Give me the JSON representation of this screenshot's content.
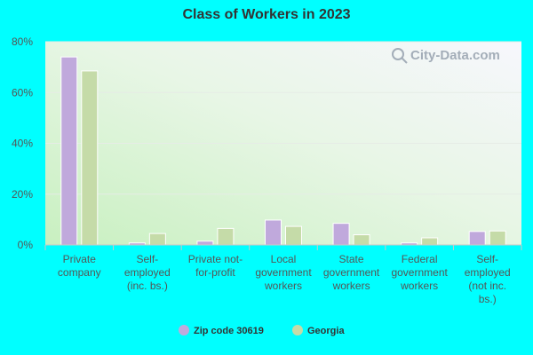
{
  "chart_data": {
    "type": "bar",
    "title": "Class of Workers in 2023",
    "categories": [
      [
        "Private",
        "company"
      ],
      [
        "Self-",
        "employed",
        "(inc. bs.)"
      ],
      [
        "Private not-",
        "for-profit"
      ],
      [
        "Local",
        "government",
        "workers"
      ],
      [
        "State",
        "government",
        "workers"
      ],
      [
        "Federal",
        "government",
        "workers"
      ],
      [
        "Self-",
        "employed",
        "(not inc.",
        "bs.)"
      ]
    ],
    "series": [
      {
        "name": "Zip code 30619",
        "color": "#c0a9dc",
        "values": [
          74.0,
          0.8,
          1.5,
          9.8,
          8.5,
          0.8,
          5.3
        ]
      },
      {
        "name": "Georgia",
        "color": "#c5dba8",
        "values": [
          68.5,
          4.5,
          6.5,
          7.3,
          4.0,
          2.8,
          5.5
        ]
      }
    ],
    "y_ticks": [
      "0%",
      "20%",
      "40%",
      "60%",
      "80%"
    ],
    "y_tick_values": [
      0,
      20,
      40,
      60,
      80
    ],
    "ylim": [
      0,
      80
    ],
    "grid": true,
    "legend_position": "bottom-center"
  },
  "watermark": "City-Data.com"
}
